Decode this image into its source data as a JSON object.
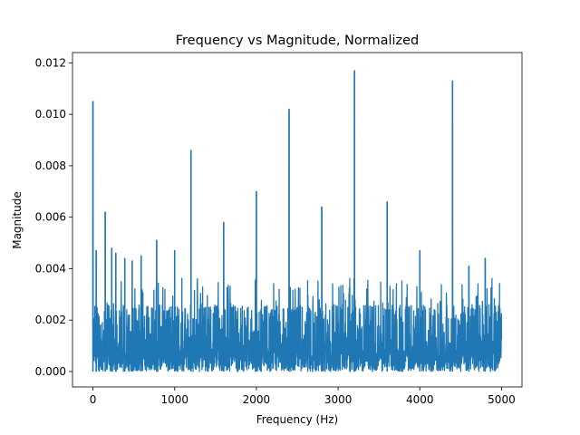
{
  "chart_data": {
    "type": "line",
    "title": "Frequency vs Magnitude, Normalized",
    "xlabel": "Frequency (Hz)",
    "ylabel": "Magnitude",
    "xlim": [
      -250,
      5250
    ],
    "ylim": [
      -0.0006,
      0.0124
    ],
    "x_ticks": [
      0,
      1000,
      2000,
      3000,
      4000,
      5000
    ],
    "x_tick_labels": [
      "0",
      "1000",
      "2000",
      "3000",
      "4000",
      "5000"
    ],
    "y_ticks": [
      0.0,
      0.002,
      0.004,
      0.006,
      0.008,
      0.01,
      0.012
    ],
    "y_tick_labels": [
      "0.000",
      "0.002",
      "0.004",
      "0.006",
      "0.008",
      "0.010",
      "0.012"
    ],
    "grid": false,
    "line_color": "#1f77b4",
    "series": [
      {
        "noise_floor_typical": 0.0026,
        "frequency_range": [
          0,
          5000
        ],
        "peaks": [
          {
            "x": 0,
            "y": 0.0105
          },
          {
            "x": 40,
            "y": 0.0047
          },
          {
            "x": 150,
            "y": 0.0062
          },
          {
            "x": 230,
            "y": 0.0048
          },
          {
            "x": 280,
            "y": 0.0046
          },
          {
            "x": 390,
            "y": 0.0044
          },
          {
            "x": 480,
            "y": 0.0043
          },
          {
            "x": 590,
            "y": 0.0045
          },
          {
            "x": 780,
            "y": 0.0051
          },
          {
            "x": 1000,
            "y": 0.0047
          },
          {
            "x": 1200,
            "y": 0.0086
          },
          {
            "x": 1600,
            "y": 0.0058
          },
          {
            "x": 2000,
            "y": 0.007
          },
          {
            "x": 2400,
            "y": 0.0102
          },
          {
            "x": 2800,
            "y": 0.0064
          },
          {
            "x": 3200,
            "y": 0.0117
          },
          {
            "x": 3600,
            "y": 0.0066
          },
          {
            "x": 4000,
            "y": 0.0047
          },
          {
            "x": 4400,
            "y": 0.0113
          },
          {
            "x": 4600,
            "y": 0.0041
          },
          {
            "x": 4800,
            "y": 0.0044
          }
        ]
      }
    ]
  }
}
